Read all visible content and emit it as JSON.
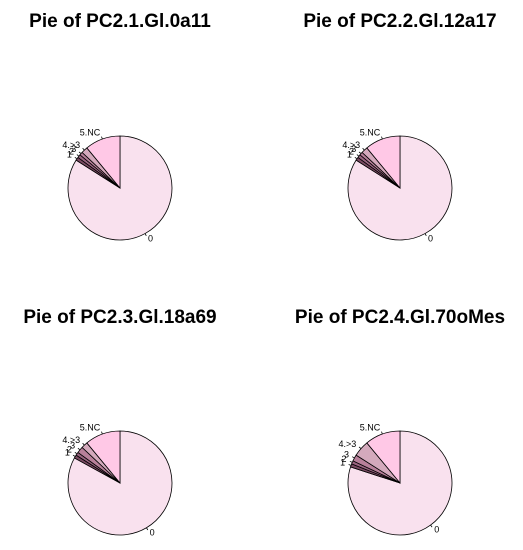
{
  "chart_data": [
    {
      "type": "pie",
      "title": "Pie of PC2.1.Gl.0a11",
      "categories": [
        "0",
        "1",
        "2",
        "3",
        "4.>3",
        "5.NC"
      ],
      "values": [
        84,
        1,
        1,
        1,
        2,
        11
      ],
      "colors": [
        "#f9e1ee",
        "#7a4a62",
        "#9a6480",
        "#b8809a",
        "#d4a9bc",
        "#ffc8e6"
      ]
    },
    {
      "type": "pie",
      "title": "Pie of PC2.2.Gl.12a17",
      "categories": [
        "0",
        "1",
        "2",
        "3",
        "4.>3",
        "5.NC"
      ],
      "values": [
        84,
        1,
        1,
        1,
        2,
        11
      ],
      "colors": [
        "#f9e1ee",
        "#7a4a62",
        "#9a6480",
        "#b8809a",
        "#d4a9bc",
        "#ffc8e6"
      ]
    },
    {
      "type": "pie",
      "title": "Pie of PC2.3.Gl.18a69",
      "categories": [
        "0",
        "1",
        "2",
        "3",
        "4.>3",
        "5.NC"
      ],
      "values": [
        83,
        1,
        1,
        2,
        2,
        11
      ],
      "colors": [
        "#f9e1ee",
        "#7a4a62",
        "#9a6480",
        "#b8809a",
        "#d4a9bc",
        "#ffc8e6"
      ]
    },
    {
      "type": "pie",
      "title": "Pie of PC2.4.Gl.70oMes",
      "categories": [
        "0",
        "1",
        "2",
        "3",
        "4.>3",
        "5.NC"
      ],
      "values": [
        80,
        1,
        1,
        2,
        5,
        11
      ],
      "colors": [
        "#f9e1ee",
        "#7a4a62",
        "#9a6480",
        "#b8809a",
        "#d4a9bc",
        "#ffc8e6"
      ]
    }
  ]
}
